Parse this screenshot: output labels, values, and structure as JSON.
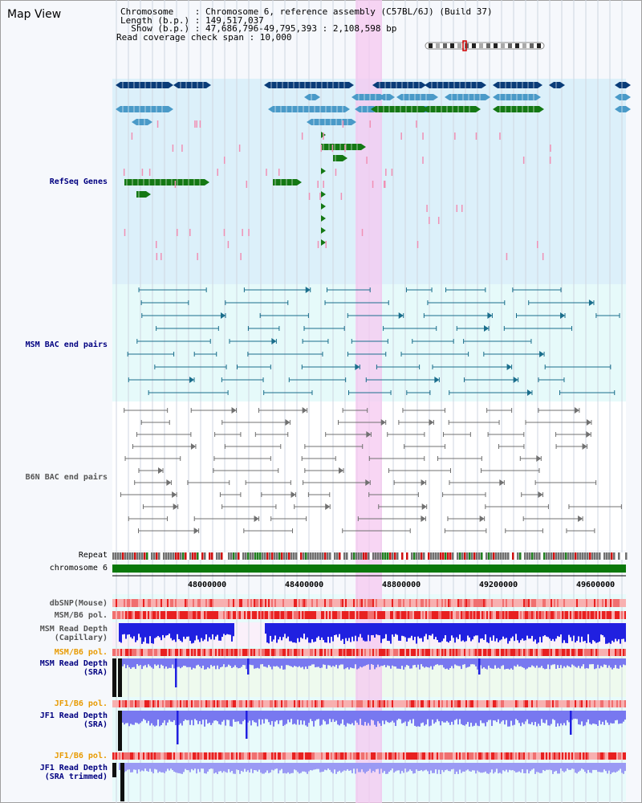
{
  "app": {
    "title": "Map View"
  },
  "info": {
    "chromosome": "Chromosome    : Chromosome 6, reference assembly (C57BL/6J) (Build 37)",
    "length": "Length (b.p.) : 149,517,037",
    "show": "  Show (b.p.) : 47,686,796-49,795,393 : 2,108,598 bp",
    "coverage": "Read coverage check span : 10,000"
  },
  "tracks": {
    "refseq": "RefSeq Genes",
    "msm_bac": "MSM BAC end pairs",
    "b6n_bac": "B6N BAC end pairs",
    "repeat": "Repeat",
    "chromosome": "chromosome 6",
    "dbsnp": "dbSNP(Mouse)",
    "msm_b6_pol_1": "MSM/B6 pol.",
    "msm_read_depth_cap": "MSM Read Depth\n(Capillary)",
    "msm_b6_pol_2": "MSM/B6 pol.",
    "msm_read_depth_sra": "MSM Read Depth\n(SRA)",
    "jf1_b6_pol_1": "JF1/B6 pol.",
    "jf1_read_depth_sra": "JF1 Read Depth\n(SRA)",
    "jf1_b6_pol_2": "JF1/B6 pol.",
    "jf1_read_depth_trim": "JF1 Read Depth\n(SRA trimmed)"
  },
  "axis": {
    "ticks": [
      "48000000",
      "48400000",
      "48800000",
      "49200000",
      "49600000"
    ]
  },
  "colors": {
    "refseq_bg": "#dcf0fa",
    "msm_bg": "#e6fafa",
    "highlight": "#f5c8f0",
    "navy_gene": "#0a3c78",
    "blue_gene": "#4a9ac8",
    "green_gene": "#147814",
    "pink": "#f090b4",
    "teal": "#1a6e8c",
    "gray": "#707070",
    "chrom_green": "#0a780a",
    "depth_blue": "#2020e0",
    "sra_blue": "#7878f0"
  }
}
